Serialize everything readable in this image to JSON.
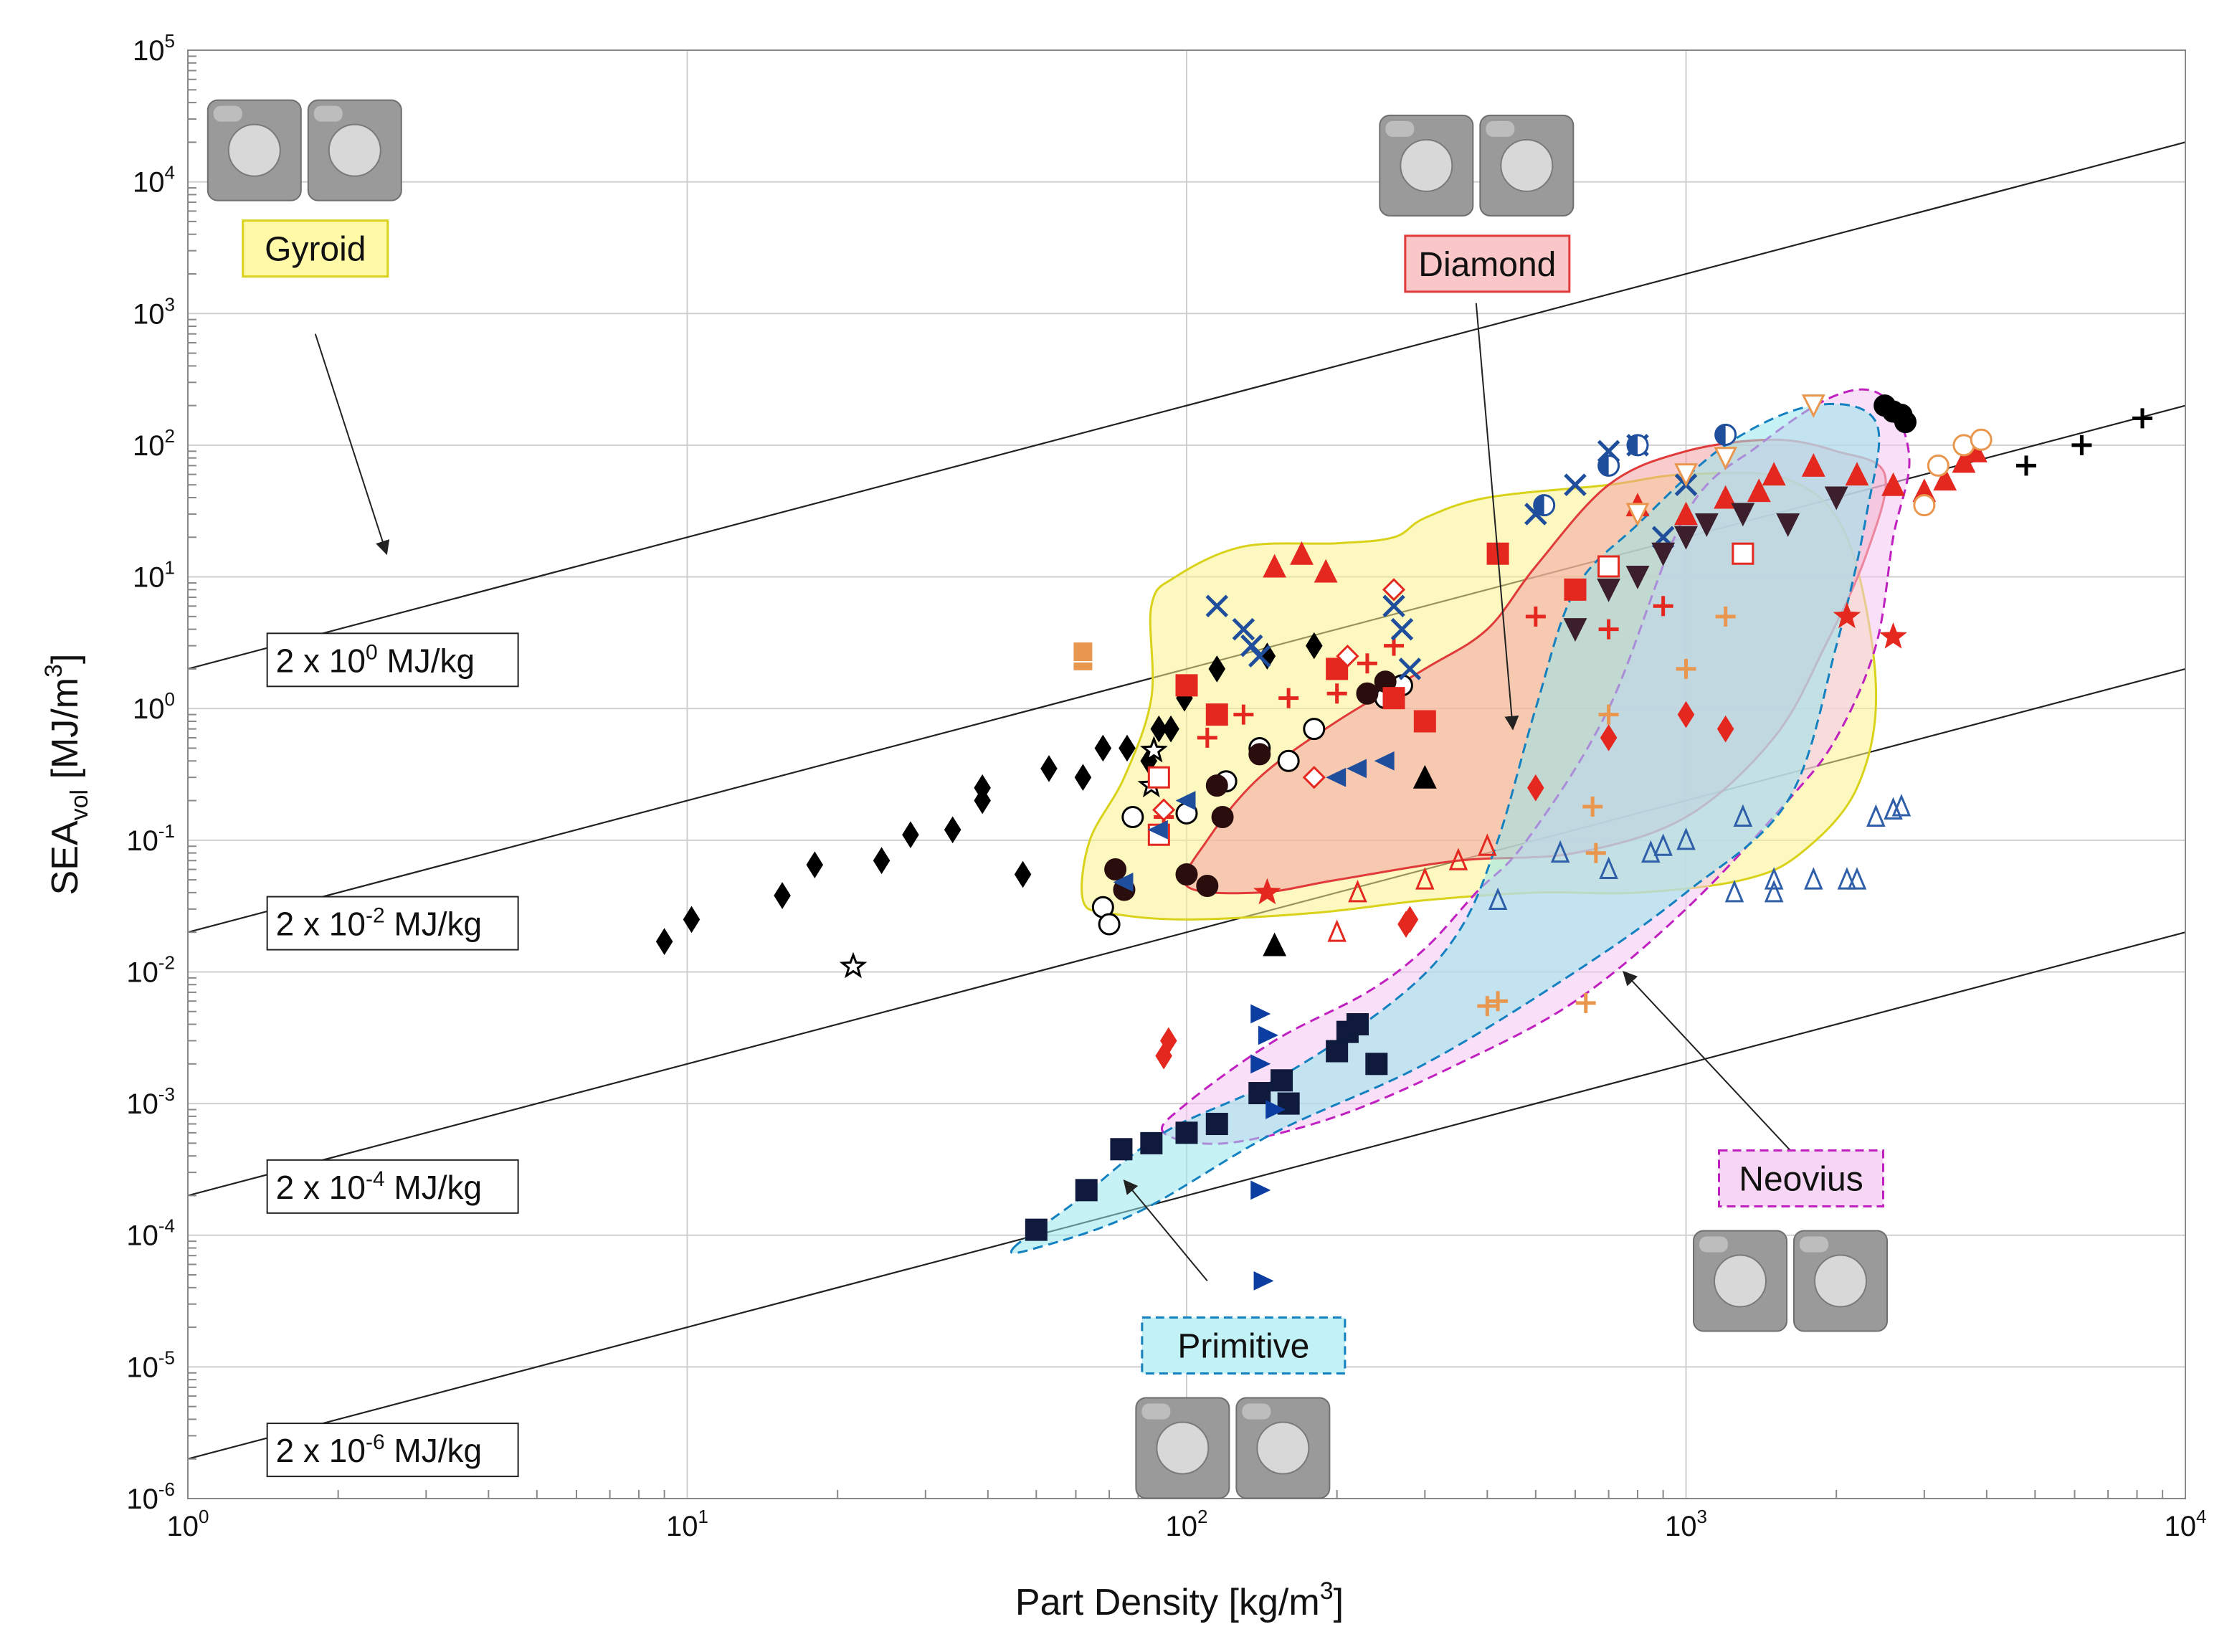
{
  "chart_data": {
    "type": "scatter",
    "title": "",
    "xlabel": {
      "main": "Part Density [kg/m",
      "sup": "3",
      "close": "]"
    },
    "ylabel": {
      "main": "SEA",
      "sub": "vol",
      "rest": " [MJ/m",
      "sup": "3",
      "close": "]"
    },
    "x_scale": "log",
    "y_scale": "log",
    "xlim": [
      1,
      10000
    ],
    "ylim": [
      1e-06,
      100000
    ],
    "grid": true,
    "x_ticks": [
      {
        "value": 1,
        "base": "10",
        "exp": "0"
      },
      {
        "value": 10,
        "base": "10",
        "exp": "1"
      },
      {
        "value": 100,
        "base": "10",
        "exp": "2"
      },
      {
        "value": 1000,
        "base": "10",
        "exp": "3"
      },
      {
        "value": 10000,
        "base": "10",
        "exp": "4"
      }
    ],
    "y_ticks": [
      {
        "value": 100000,
        "base": "10",
        "exp": "5"
      },
      {
        "value": 10000,
        "base": "10",
        "exp": "4"
      },
      {
        "value": 1000,
        "base": "10",
        "exp": "3"
      },
      {
        "value": 100,
        "base": "10",
        "exp": "2"
      },
      {
        "value": 10,
        "base": "10",
        "exp": "1"
      },
      {
        "value": 1,
        "base": "10",
        "exp": "0"
      },
      {
        "value": 0.1,
        "base": "10",
        "exp": "-1"
      },
      {
        "value": 0.01,
        "base": "10",
        "exp": "-2"
      },
      {
        "value": 0.001,
        "base": "10",
        "exp": "-3"
      },
      {
        "value": 0.0001,
        "base": "10",
        "exp": "-4"
      },
      {
        "value": 1e-05,
        "base": "10",
        "exp": "-5"
      },
      {
        "value": 1e-06,
        "base": "10",
        "exp": "-6"
      }
    ],
    "guide_lines": [
      {
        "sea_mass": 2,
        "label_pre": "2 x 10",
        "label_exp": "0",
        "label_post": " MJ/kg",
        "label_y": 2.2
      },
      {
        "sea_mass": 0.02,
        "label_pre": "2 x 10",
        "label_exp": "-2",
        "label_post": " MJ/kg",
        "label_y": 0.022
      },
      {
        "sea_mass": 0.0002,
        "label_pre": "2 x 10",
        "label_exp": "-4",
        "label_post": " MJ/kg",
        "label_y": 0.00022
      },
      {
        "sea_mass": 2e-06,
        "label_pre": "2 x 10",
        "label_exp": "-6",
        "label_post": " MJ/kg",
        "label_y": 2.2e-06
      }
    ],
    "regions": [
      {
        "name": "Gyroid",
        "fill": "#fbf38c",
        "stroke": "#d9d21a",
        "dashed": false,
        "boundary": [
          [
            70,
            0.028
          ],
          [
            62,
            0.035
          ],
          [
            64,
            0.1
          ],
          [
            75,
            0.3
          ],
          [
            85,
            1.2
          ],
          [
            85,
            6
          ],
          [
            95,
            10
          ],
          [
            130,
            17
          ],
          [
            200,
            18
          ],
          [
            260,
            20
          ],
          [
            300,
            28
          ],
          [
            400,
            40
          ],
          [
            700,
            50
          ],
          [
            1000,
            60
          ],
          [
            1600,
            55
          ],
          [
            2100,
            20
          ],
          [
            2400,
            1.5
          ],
          [
            2200,
            0.25
          ],
          [
            1700,
            0.08
          ],
          [
            1300,
            0.05
          ],
          [
            800,
            0.04
          ],
          [
            500,
            0.04
          ],
          [
            300,
            0.035
          ],
          [
            180,
            0.028
          ],
          [
            100,
            0.025
          ]
        ],
        "label_pos": [
          1.8,
          3000
        ],
        "arrow_from": [
          1.8,
          700
        ],
        "arrow_to": [
          2.5,
          15
        ]
      },
      {
        "name": "Diamond",
        "fill": "#f3a3a3",
        "stroke": "#e13a3a",
        "dashed": false,
        "boundary": [
          [
            100,
            0.045
          ],
          [
            110,
            0.1
          ],
          [
            140,
            0.3
          ],
          [
            200,
            0.8
          ],
          [
            300,
            2
          ],
          [
            400,
            4
          ],
          [
            500,
            12
          ],
          [
            700,
            50
          ],
          [
            1000,
            90
          ],
          [
            1500,
            110
          ],
          [
            2000,
            90
          ],
          [
            2500,
            60
          ],
          [
            2300,
            15
          ],
          [
            1900,
            3
          ],
          [
            1500,
            0.6
          ],
          [
            1000,
            0.15
          ],
          [
            600,
            0.08
          ],
          [
            350,
            0.07
          ],
          [
            200,
            0.05
          ],
          [
            140,
            0.04
          ]
        ],
        "label_pos": [
          400,
          2300
        ],
        "arrow_from": [
          380,
          1200
        ],
        "arrow_to": [
          450,
          0.7
        ]
      },
      {
        "name": "Neovius",
        "fill": "#f4c4f0",
        "stroke": "#c020c0",
        "dashed": true,
        "boundary": [
          [
            90,
            0.0006
          ],
          [
            100,
            0.001
          ],
          [
            150,
            0.003
          ],
          [
            230,
            0.007
          ],
          [
            300,
            0.015
          ],
          [
            380,
            0.04
          ],
          [
            480,
            0.1
          ],
          [
            700,
            1
          ],
          [
            1000,
            30
          ],
          [
            1400,
            100
          ],
          [
            2000,
            240
          ],
          [
            2500,
            230
          ],
          [
            2800,
            80
          ],
          [
            2600,
            20
          ],
          [
            2400,
            3
          ],
          [
            2000,
            0.6
          ],
          [
            1600,
            0.2
          ],
          [
            1000,
            0.03
          ],
          [
            600,
            0.006
          ],
          [
            350,
            0.002
          ],
          [
            200,
            0.0008
          ],
          [
            120,
            0.0005
          ]
        ],
        "label_pos": [
          1700,
          0.00026
        ],
        "arrow_from": [
          1700,
          0.00036
        ],
        "arrow_to": [
          750,
          0.01
        ]
      },
      {
        "name": "Primitive",
        "fill": "#97e6ed",
        "stroke": "#1380c0",
        "dashed": true,
        "boundary": [
          [
            45,
            8e-05
          ],
          [
            60,
            0.00018
          ],
          [
            90,
            0.0006
          ],
          [
            150,
            0.0015
          ],
          [
            260,
            0.006
          ],
          [
            350,
            0.02
          ],
          [
            420,
            0.1
          ],
          [
            500,
            1
          ],
          [
            600,
            8
          ],
          [
            800,
            25
          ],
          [
            1200,
            100
          ],
          [
            1800,
            200
          ],
          [
            2400,
            150
          ],
          [
            2300,
            30
          ],
          [
            2000,
            3
          ],
          [
            1600,
            0.2
          ],
          [
            1000,
            0.04
          ],
          [
            600,
            0.01
          ],
          [
            300,
            0.002
          ],
          [
            150,
            0.0006
          ],
          [
            80,
            0.00015
          ],
          [
            50,
            8e-05
          ]
        ],
        "label_pos": [
          130,
          1.4e-05
        ],
        "arrow_from": [
          110,
          4.5e-05
        ],
        "arrow_to": [
          75,
          0.00026
        ]
      }
    ],
    "series": [
      {
        "marker": "diamond",
        "color": "#000000",
        "filled": true,
        "x": [
          9,
          10.2,
          15.5,
          18,
          24.5,
          28,
          34,
          39,
          39,
          47,
          53,
          62,
          68,
          76,
          84,
          88,
          93,
          99,
          115,
          145,
          180
        ],
        "y": [
          0.017,
          0.025,
          0.038,
          0.065,
          0.07,
          0.11,
          0.12,
          0.2,
          0.25,
          0.055,
          0.35,
          0.3,
          0.5,
          0.5,
          0.4,
          0.7,
          0.7,
          1.2,
          2,
          2.5,
          3
        ]
      },
      {
        "marker": "star",
        "color": "#000000",
        "filled": false,
        "x": [
          21.5,
          85,
          86,
          86
        ],
        "y": [
          0.011,
          0.26,
          0.48,
          0.48
        ]
      },
      {
        "marker": "circle",
        "color": "#000000",
        "filled": false,
        "x": [
          68,
          70,
          78,
          100,
          120,
          140,
          160,
          180,
          250,
          270
        ],
        "y": [
          0.031,
          0.023,
          0.15,
          0.16,
          0.28,
          0.5,
          0.4,
          0.7,
          1.2,
          1.5
        ]
      },
      {
        "marker": "circle",
        "color": "#2a0d0d",
        "filled": true,
        "x": [
          72,
          75,
          100,
          110,
          115,
          118,
          140,
          230,
          250,
          260
        ],
        "y": [
          0.06,
          0.042,
          0.055,
          0.045,
          0.26,
          0.15,
          0.45,
          1.3,
          1.6,
          1.2
        ]
      },
      {
        "marker": "triangle-up",
        "color": "#e4281f",
        "filled": true,
        "x": [
          150,
          170,
          190,
          800,
          1200,
          1500,
          1800,
          2200,
          2600,
          3000,
          3300,
          3600,
          3800,
          1000,
          1400
        ],
        "y": [
          12,
          15,
          11,
          35,
          40,
          60,
          70,
          60,
          50,
          45,
          55,
          75,
          90,
          30,
          45
        ]
      },
      {
        "marker": "square",
        "color": "#e4281f",
        "filled": true,
        "x": [
          100,
          115,
          200,
          260,
          300,
          420,
          600
        ],
        "y": [
          1.5,
          0.9,
          2,
          1.2,
          0.8,
          15,
          8
        ]
      },
      {
        "marker": "plus",
        "color": "#e4281f",
        "filled": true,
        "x": [
          90,
          110,
          130,
          160,
          200,
          230,
          260,
          500,
          700,
          900
        ],
        "y": [
          0.15,
          0.6,
          0.9,
          1.2,
          1.3,
          2.2,
          3,
          5,
          4,
          6
        ]
      },
      {
        "marker": "cross",
        "color": "#1f4e9c",
        "filled": true,
        "x": [
          115,
          130,
          135,
          140,
          260,
          270,
          280,
          500,
          600,
          700,
          800,
          900,
          1000
        ],
        "y": [
          6,
          4,
          3,
          2.5,
          6,
          4,
          2,
          30,
          50,
          90,
          100,
          20,
          50
        ]
      },
      {
        "marker": "triangle-open",
        "color": "#2e5fa8",
        "filled": false,
        "x": [
          420,
          560,
          700,
          850,
          1000,
          1250,
          1500,
          1800,
          2100,
          2400,
          2600,
          2700,
          1500,
          2200,
          1300,
          900
        ],
        "y": [
          0.035,
          0.08,
          0.06,
          0.08,
          0.1,
          0.04,
          0.05,
          0.05,
          0.05,
          0.15,
          0.17,
          0.18,
          0.04,
          0.05,
          0.15,
          0.09
        ]
      },
      {
        "marker": "square",
        "color": "#0f1a3c",
        "filled": true,
        "x": [
          50,
          63,
          74,
          85,
          100,
          115,
          140,
          155,
          160,
          200,
          210,
          220,
          240
        ],
        "y": [
          0.00011,
          0.00022,
          0.00045,
          0.0005,
          0.0006,
          0.0007,
          0.0012,
          0.0015,
          0.001,
          0.0025,
          0.0035,
          0.004,
          0.002
        ]
      },
      {
        "marker": "triangle-right",
        "color": "#0b3ea0",
        "filled": true,
        "x": [
          140,
          140,
          142,
          140,
          145,
          150
        ],
        "y": [
          0.0048,
          0.002,
          4.5e-05,
          0.00022,
          0.0033,
          0.0009
        ]
      },
      {
        "marker": "diamond",
        "color": "#e4281f",
        "filled": true,
        "x": [
          90,
          92,
          275,
          280,
          500,
          700,
          1000,
          1200
        ],
        "y": [
          0.0023,
          0.003,
          0.023,
          0.025,
          0.25,
          0.6,
          0.9,
          0.7
        ]
      },
      {
        "marker": "triangle-up",
        "color": "#000000",
        "filled": true,
        "x": [
          150,
          300
        ],
        "y": [
          0.016,
          0.3
        ]
      },
      {
        "marker": "plus",
        "color": "#e9974e",
        "filled": true,
        "x": [
          400,
          420,
          630,
          650,
          660,
          700,
          1000,
          1200
        ],
        "y": [
          0.0055,
          0.006,
          0.0058,
          0.18,
          0.08,
          0.9,
          2,
          5
        ]
      },
      {
        "marker": "triangle-open",
        "color": "#e4281f",
        "filled": false,
        "x": [
          200,
          220,
          300,
          350,
          400
        ],
        "y": [
          0.02,
          0.04,
          0.05,
          0.07,
          0.09
        ]
      },
      {
        "marker": "circle",
        "color": "#e9974e",
        "filled": false,
        "x": [
          3000,
          3200,
          3600,
          3900
        ],
        "y": [
          35,
          70,
          100,
          110
        ]
      },
      {
        "marker": "plus",
        "color": "#000000",
        "filled": true,
        "x": [
          4800,
          6200,
          8200
        ],
        "y": [
          70,
          100,
          160
        ]
      },
      {
        "marker": "circle",
        "color": "#000000",
        "filled": true,
        "x": [
          2500,
          2600,
          2700,
          2750
        ],
        "y": [
          200,
          180,
          170,
          150
        ]
      },
      {
        "marker": "square-lines",
        "color": "#e9974e",
        "filled": true,
        "x": [
          62,
          62
        ],
        "y": [
          2.3,
          2.7
        ]
      },
      {
        "marker": "square-open",
        "color": "#e4281f",
        "filled": false,
        "x": [
          88,
          88,
          700,
          1300
        ],
        "y": [
          0.3,
          0.11,
          12,
          15
        ]
      },
      {
        "marker": "triangle-left",
        "color": "#1f4e9c",
        "filled": true,
        "x": [
          75,
          88,
          100,
          200,
          220,
          250
        ],
        "y": [
          0.048,
          0.12,
          0.2,
          0.3,
          0.35,
          0.4
        ]
      },
      {
        "marker": "diamond-open",
        "color": "#e4281f",
        "filled": false,
        "x": [
          90,
          180,
          210,
          260
        ],
        "y": [
          0.17,
          0.3,
          2.5,
          8
        ]
      },
      {
        "marker": "star",
        "color": "#e4281f",
        "filled": true,
        "x": [
          145,
          2100,
          2600
        ],
        "y": [
          0.04,
          5,
          3.5
        ]
      },
      {
        "marker": "triangle-down",
        "color": "#3c1f2c",
        "filled": true,
        "x": [
          600,
          700,
          800,
          900,
          1000,
          1100,
          1300,
          1600,
          2000
        ],
        "y": [
          4,
          8,
          10,
          15,
          20,
          25,
          30,
          25,
          40
        ]
      },
      {
        "marker": "triangle-down",
        "color": "#e9974e",
        "filled": false,
        "x": [
          800,
          1000,
          1200,
          1800
        ],
        "y": [
          30,
          60,
          80,
          200
        ]
      },
      {
        "marker": "half-circle",
        "color": "#1f4e9c",
        "filled": true,
        "x": [
          520,
          700,
          800,
          1200
        ],
        "y": [
          35,
          70,
          100,
          120
        ]
      }
    ]
  },
  "chart_panel": {
    "plot_bg": "#ffffff",
    "grid_color": "#cfcfcf"
  }
}
